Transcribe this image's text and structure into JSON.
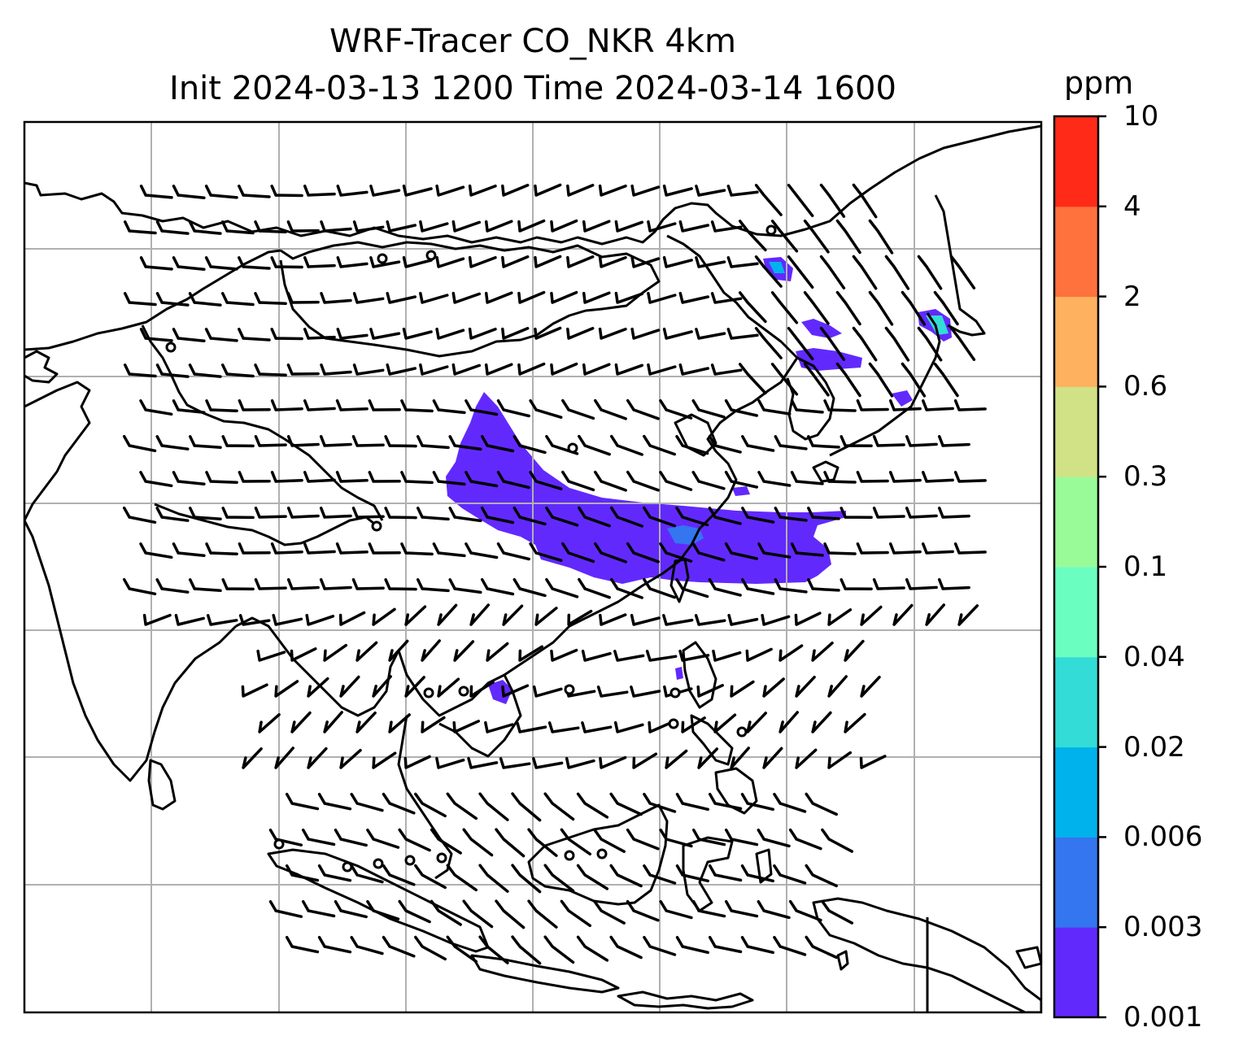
{
  "title": {
    "line1": "WRF-Tracer CO_NKR 4km",
    "line2": "Init 2024-03-13 1200 Time 2024-03-14 1600"
  },
  "colorbar": {
    "unit": "ppm",
    "tick_labels": [
      "0.001",
      "0.003",
      "0.006",
      "0.02",
      "0.04",
      "0.1",
      "0.3",
      "0.6",
      "2",
      "4",
      "10"
    ],
    "colors": [
      "#6229fd",
      "#3475f0",
      "#00b2ec",
      "#33dcd6",
      "#6afec0",
      "#99fb98",
      "#d1e186",
      "#feb260",
      "#ff713d",
      "#ff2a17"
    ]
  },
  "map": {
    "background": "#ffffff",
    "gridline_color": "#b0b0b0",
    "coastline_color": "#000000",
    "tracer_plume_color": "#6229fd",
    "tracer_high_color": "#3475f0",
    "station_marker": "open-circle"
  }
}
